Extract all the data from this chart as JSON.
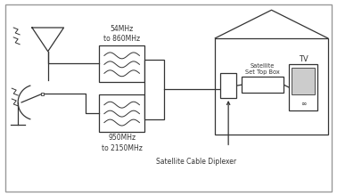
{
  "bg_color": "#ffffff",
  "line_color": "#333333",
  "filter1_label": "54MHz\nto 860MHz",
  "filter2_label": "950MHz\nto 2150MHz",
  "diplexer_label": "Satellite Cable Diplexer",
  "stb_label": "Satellite\nSet Top Box",
  "tv_label": "TV"
}
